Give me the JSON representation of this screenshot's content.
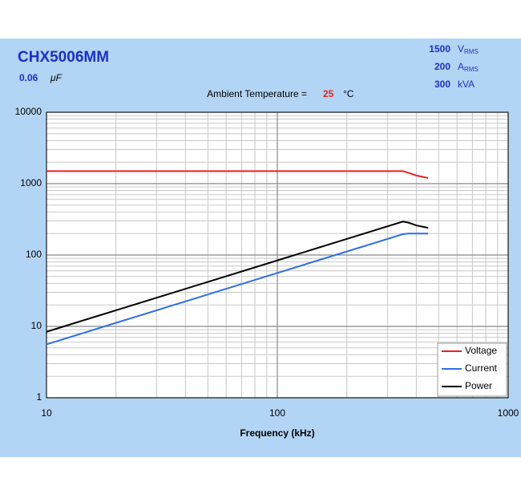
{
  "chart_data": {
    "type": "line",
    "title": "CHX5006MM",
    "capacitance": 0.06,
    "capacitance_unit": "μF",
    "ratings": [
      {
        "value": 1500,
        "unit": "V",
        "sub": "RMS"
      },
      {
        "value": 200,
        "unit": "A",
        "sub": "RMS"
      },
      {
        "value": 300,
        "unit": "kVA"
      }
    ],
    "annotation": {
      "label": "Ambient Temperature =",
      "value": 25,
      "unit": "°C"
    },
    "x_label": "Frequency (kHz)",
    "x": [
      10,
      20,
      50,
      100,
      200,
      350,
      370,
      400,
      450
    ],
    "series": [
      {
        "name": "Voltage",
        "color": "#e8231c",
        "values": [
          1500,
          1500,
          1500,
          1500,
          1500,
          1500,
          1420,
          1300,
          1200
        ]
      },
      {
        "name": "Current",
        "color": "#2e6fe8",
        "values": [
          5.6,
          11.2,
          28,
          56,
          112,
          196,
          200,
          200,
          200
        ]
      },
      {
        "name": "Power",
        "color": "#000000",
        "values": [
          8.4,
          16.8,
          42,
          84,
          168,
          294,
          284,
          260,
          240
        ]
      }
    ],
    "xlim": [
      10,
      1000
    ],
    "ylim": [
      1,
      10000
    ],
    "xticks": [
      10,
      100,
      1000
    ],
    "yticks": [
      1,
      10,
      100,
      1000,
      10000
    ],
    "log_x": true,
    "log_y": true,
    "grid": true,
    "minor_grid": true,
    "legend": "lower right"
  }
}
